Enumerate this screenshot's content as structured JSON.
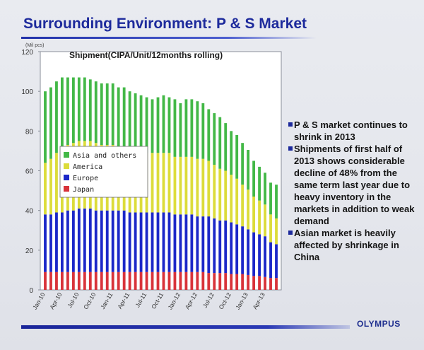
{
  "slide": {
    "title": "Surrounding Environment: P & S Market",
    "logo": "OLYMPUS",
    "bullets": [
      "P & S market continues to shrink in 2013",
      "Shipments of first half of 2013 shows considerable decline of 48% from the same term last year due to heavy inventory in the markets in addition to weak demand",
      "Asian market is heavily affected by shrinkage in China"
    ]
  },
  "chart_data": {
    "type": "bar",
    "stacked": true,
    "title": "Shipment(CIPA/Unit/12months rolling)",
    "unit_label": "(Mil pcs)",
    "ylim": [
      0,
      120
    ],
    "yticks": [
      0,
      20,
      40,
      60,
      80,
      100,
      120
    ],
    "grid": false,
    "legend_position": "center-left",
    "categories": [
      "Jan-10",
      "Feb-10",
      "Mar-10",
      "Apr-10",
      "May-10",
      "Jun-10",
      "Jul-10",
      "Aug-10",
      "Sep-10",
      "Oct-10",
      "Nov-10",
      "Dec-10",
      "Jan-11",
      "Feb-11",
      "Mar-11",
      "Apr-11",
      "May-11",
      "Jun-11",
      "Jul-11",
      "Aug-11",
      "Sep-11",
      "Oct-11",
      "Nov-11",
      "Dec-11",
      "Jan-12",
      "Feb-12",
      "Mar-12",
      "Apr-12",
      "May-12",
      "Jun-12",
      "Jul-12",
      "Aug-12",
      "Sep-12",
      "Oct-12",
      "Nov-12",
      "Dec-12",
      "Jan-13",
      "Feb-13",
      "Mar-13",
      "Apr-13",
      "May-13",
      "Jun-13"
    ],
    "tick_labels": [
      "Jan-10",
      "Apr-10",
      "Jul-10",
      "Oct-10",
      "Jan-11",
      "Apr-11",
      "Jul-11",
      "Oct-11",
      "Jan-12",
      "Apr-12",
      "Jul-12",
      "Oct-12",
      "Jan-13",
      "Apr-13"
    ],
    "tick_label_indices": [
      0,
      3,
      6,
      9,
      12,
      15,
      18,
      21,
      24,
      27,
      30,
      33,
      36,
      39
    ],
    "series": [
      {
        "name": "Japan",
        "color": "#d8333a",
        "values": [
          9,
          9,
          9,
          9,
          9,
          9,
          9,
          9,
          9,
          9,
          9,
          9,
          9,
          9,
          9,
          9,
          9,
          9,
          9,
          9,
          9,
          9,
          9,
          9,
          9,
          9,
          9,
          9,
          9,
          8.5,
          8.5,
          8.5,
          8.5,
          8,
          8,
          8,
          7.5,
          7,
          7,
          6.5,
          6,
          6
        ]
      },
      {
        "name": "Europe",
        "color": "#1b27c8",
        "values": [
          29,
          29,
          30,
          30,
          31,
          31,
          32,
          32,
          32,
          31,
          31,
          31,
          31,
          31,
          31,
          30,
          30,
          30,
          30,
          30,
          30,
          30,
          30,
          29,
          29,
          29,
          29,
          28,
          28,
          28.5,
          27.5,
          26.5,
          26.5,
          26,
          25,
          24,
          23,
          22,
          21,
          20.5,
          18,
          17
        ]
      },
      {
        "name": "America",
        "color": "#dcdc3a",
        "values": [
          26,
          28,
          30,
          32,
          33,
          34,
          34,
          34,
          34,
          34,
          33,
          33,
          33,
          32,
          32,
          31,
          30,
          30,
          30,
          30,
          30,
          30,
          30,
          29,
          29,
          29,
          29,
          29,
          29,
          28,
          27,
          26,
          25,
          24,
          23,
          21,
          20,
          18,
          17,
          16,
          14,
          13
        ]
      },
      {
        "name": "Asia and others",
        "color": "#43b847",
        "values": [
          36,
          36,
          36,
          36,
          34,
          33,
          32,
          32,
          31,
          31,
          31,
          31,
          31,
          30,
          30,
          30,
          30,
          29,
          28,
          27,
          28,
          29,
          28,
          29,
          27,
          29,
          29,
          29,
          28,
          26,
          26,
          26,
          24,
          22,
          22,
          21,
          20,
          18,
          17,
          16,
          16,
          17
        ]
      }
    ]
  }
}
